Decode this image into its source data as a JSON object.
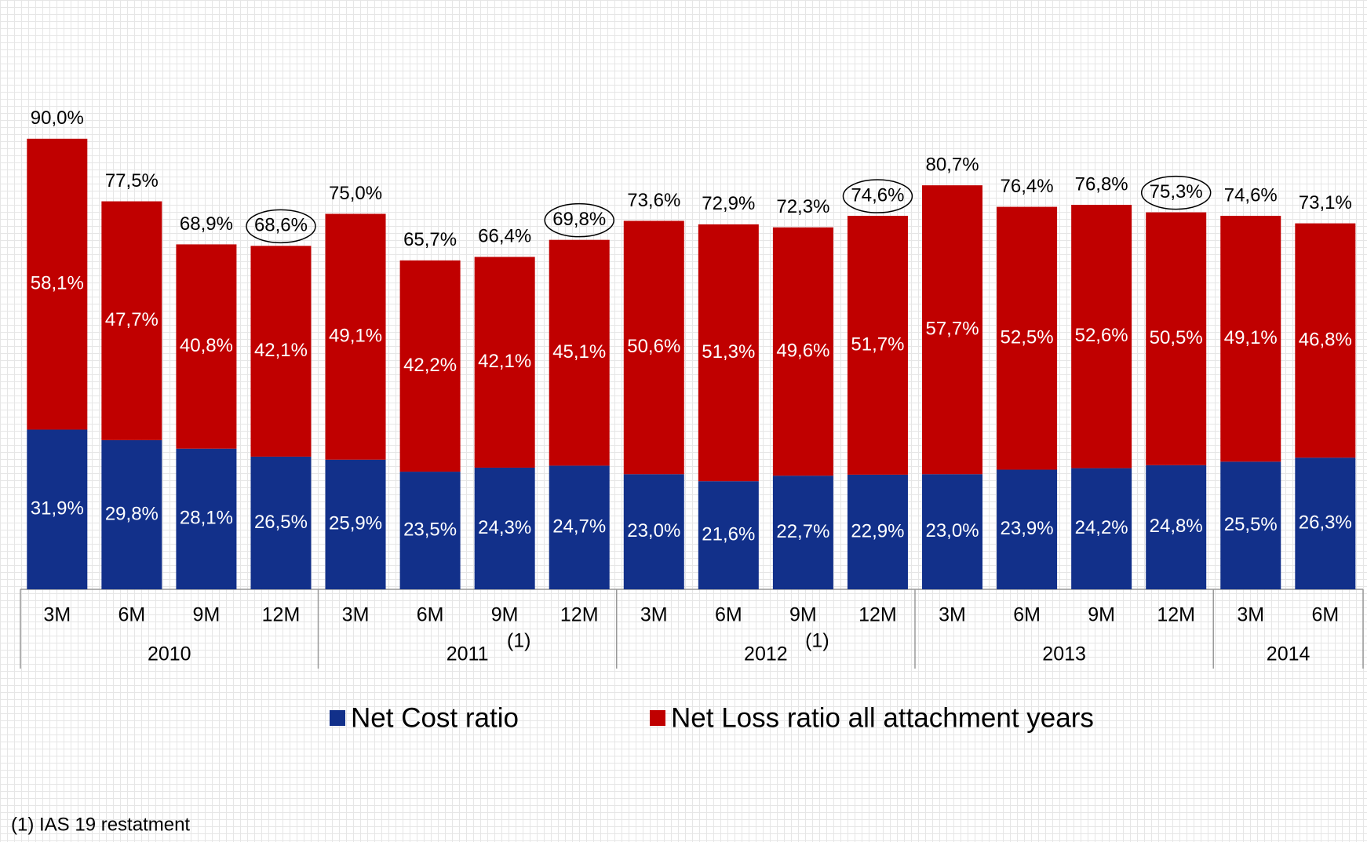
{
  "chart_data": {
    "type": "stacked_bar",
    "groups": [
      {
        "name": "2010",
        "categories": [
          "3M",
          "6M",
          "9M",
          "12M"
        ]
      },
      {
        "name": "2011",
        "categories": [
          "3M",
          "6M",
          "9M",
          "12M"
        ]
      },
      {
        "name": "2012",
        "categories": [
          "3M",
          "6M",
          "9M",
          "12M"
        ]
      },
      {
        "name": "2013",
        "categories": [
          "3M",
          "6M",
          "9M",
          "12M"
        ]
      },
      {
        "name": "2014",
        "categories": [
          "3M",
          "6M"
        ]
      }
    ],
    "category_notes": [
      null,
      null,
      null,
      null,
      null,
      null,
      "(1)",
      null,
      null,
      null,
      "(1)",
      null,
      null,
      null,
      null,
      null,
      null,
      null
    ],
    "series": [
      {
        "name": "Net Cost ratio",
        "color": "#12308a",
        "values": [
          31.9,
          29.8,
          28.1,
          26.5,
          25.9,
          23.5,
          24.3,
          24.7,
          23.0,
          21.6,
          22.7,
          22.9,
          23.0,
          23.9,
          24.2,
          24.8,
          25.5,
          26.3
        ],
        "value_labels": [
          "31,9%",
          "29,8%",
          "28,1%",
          "26,5%",
          "25,9%",
          "23,5%",
          "24,3%",
          "24,7%",
          "23,0%",
          "21,6%",
          "22,7%",
          "22,9%",
          "23,0%",
          "23,9%",
          "24,2%",
          "24,8%",
          "25,5%",
          "26,3%"
        ]
      },
      {
        "name": "Net Loss ratio all attachment years",
        "color": "#c00000",
        "values": [
          58.1,
          47.7,
          40.8,
          42.1,
          49.1,
          42.2,
          42.1,
          45.1,
          50.6,
          51.3,
          49.6,
          51.7,
          57.7,
          52.5,
          52.6,
          50.5,
          49.1,
          46.8
        ],
        "value_labels": [
          "58,1%",
          "47,7%",
          "40,8%",
          "42,1%",
          "49,1%",
          "42,2%",
          "42,1%",
          "45,1%",
          "50,6%",
          "51,3%",
          "49,6%",
          "51,7%",
          "57,7%",
          "52,5%",
          "52,6%",
          "50,5%",
          "49,1%",
          "46,8%"
        ]
      }
    ],
    "totals": {
      "values": [
        90.0,
        77.5,
        68.9,
        68.6,
        75.0,
        65.7,
        66.4,
        69.8,
        73.6,
        72.9,
        72.3,
        74.6,
        80.7,
        76.4,
        76.8,
        75.3,
        74.6,
        73.1
      ],
      "value_labels": [
        "90,0%",
        "77,5%",
        "68,9%",
        "68,6%",
        "75,0%",
        "65,7%",
        "66,4%",
        "69,8%",
        "73,6%",
        "72,9%",
        "72,3%",
        "74,6%",
        "80,7%",
        "76,4%",
        "76,8%",
        "75,3%",
        "74,6%",
        "73,1%"
      ],
      "circled": [
        false,
        false,
        false,
        true,
        false,
        false,
        false,
        true,
        false,
        false,
        false,
        true,
        false,
        false,
        false,
        true,
        false,
        false
      ]
    },
    "footnote": "(1) IAS 19 restatment"
  }
}
